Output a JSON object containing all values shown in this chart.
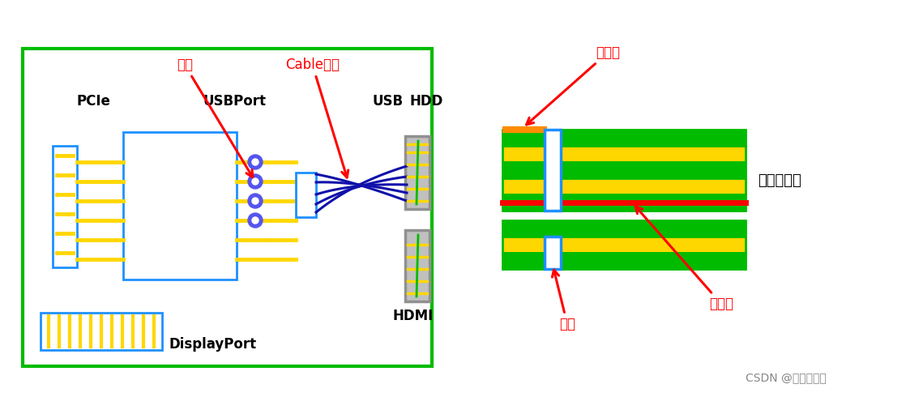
{
  "background": "#ffffff",
  "title_text": "CSDN @涛哥依旧在",
  "pcie_label": "PCIe",
  "usbport_label": "USBPort",
  "usb_label": "USB",
  "hdd_label": "HDD",
  "hdmi_label": "HDMI",
  "dp_label": "DisplayPort",
  "layer_label": "叠层侧视图",
  "annotation_via1": "过孔",
  "annotation_cable": "Cable线缆",
  "annotation_via2": "过孔",
  "annotation_microstrip": "微带线",
  "annotation_stripline": "带状线",
  "blue": "#1E90FF",
  "yellow": "#FFD700",
  "green": "#00bb00",
  "gray": "#909090",
  "orange": "#FF8C00",
  "red": "#FF0000",
  "darkblue": "#1010AA",
  "purple_via": "#5555EE",
  "silver": "#C0C0C0"
}
